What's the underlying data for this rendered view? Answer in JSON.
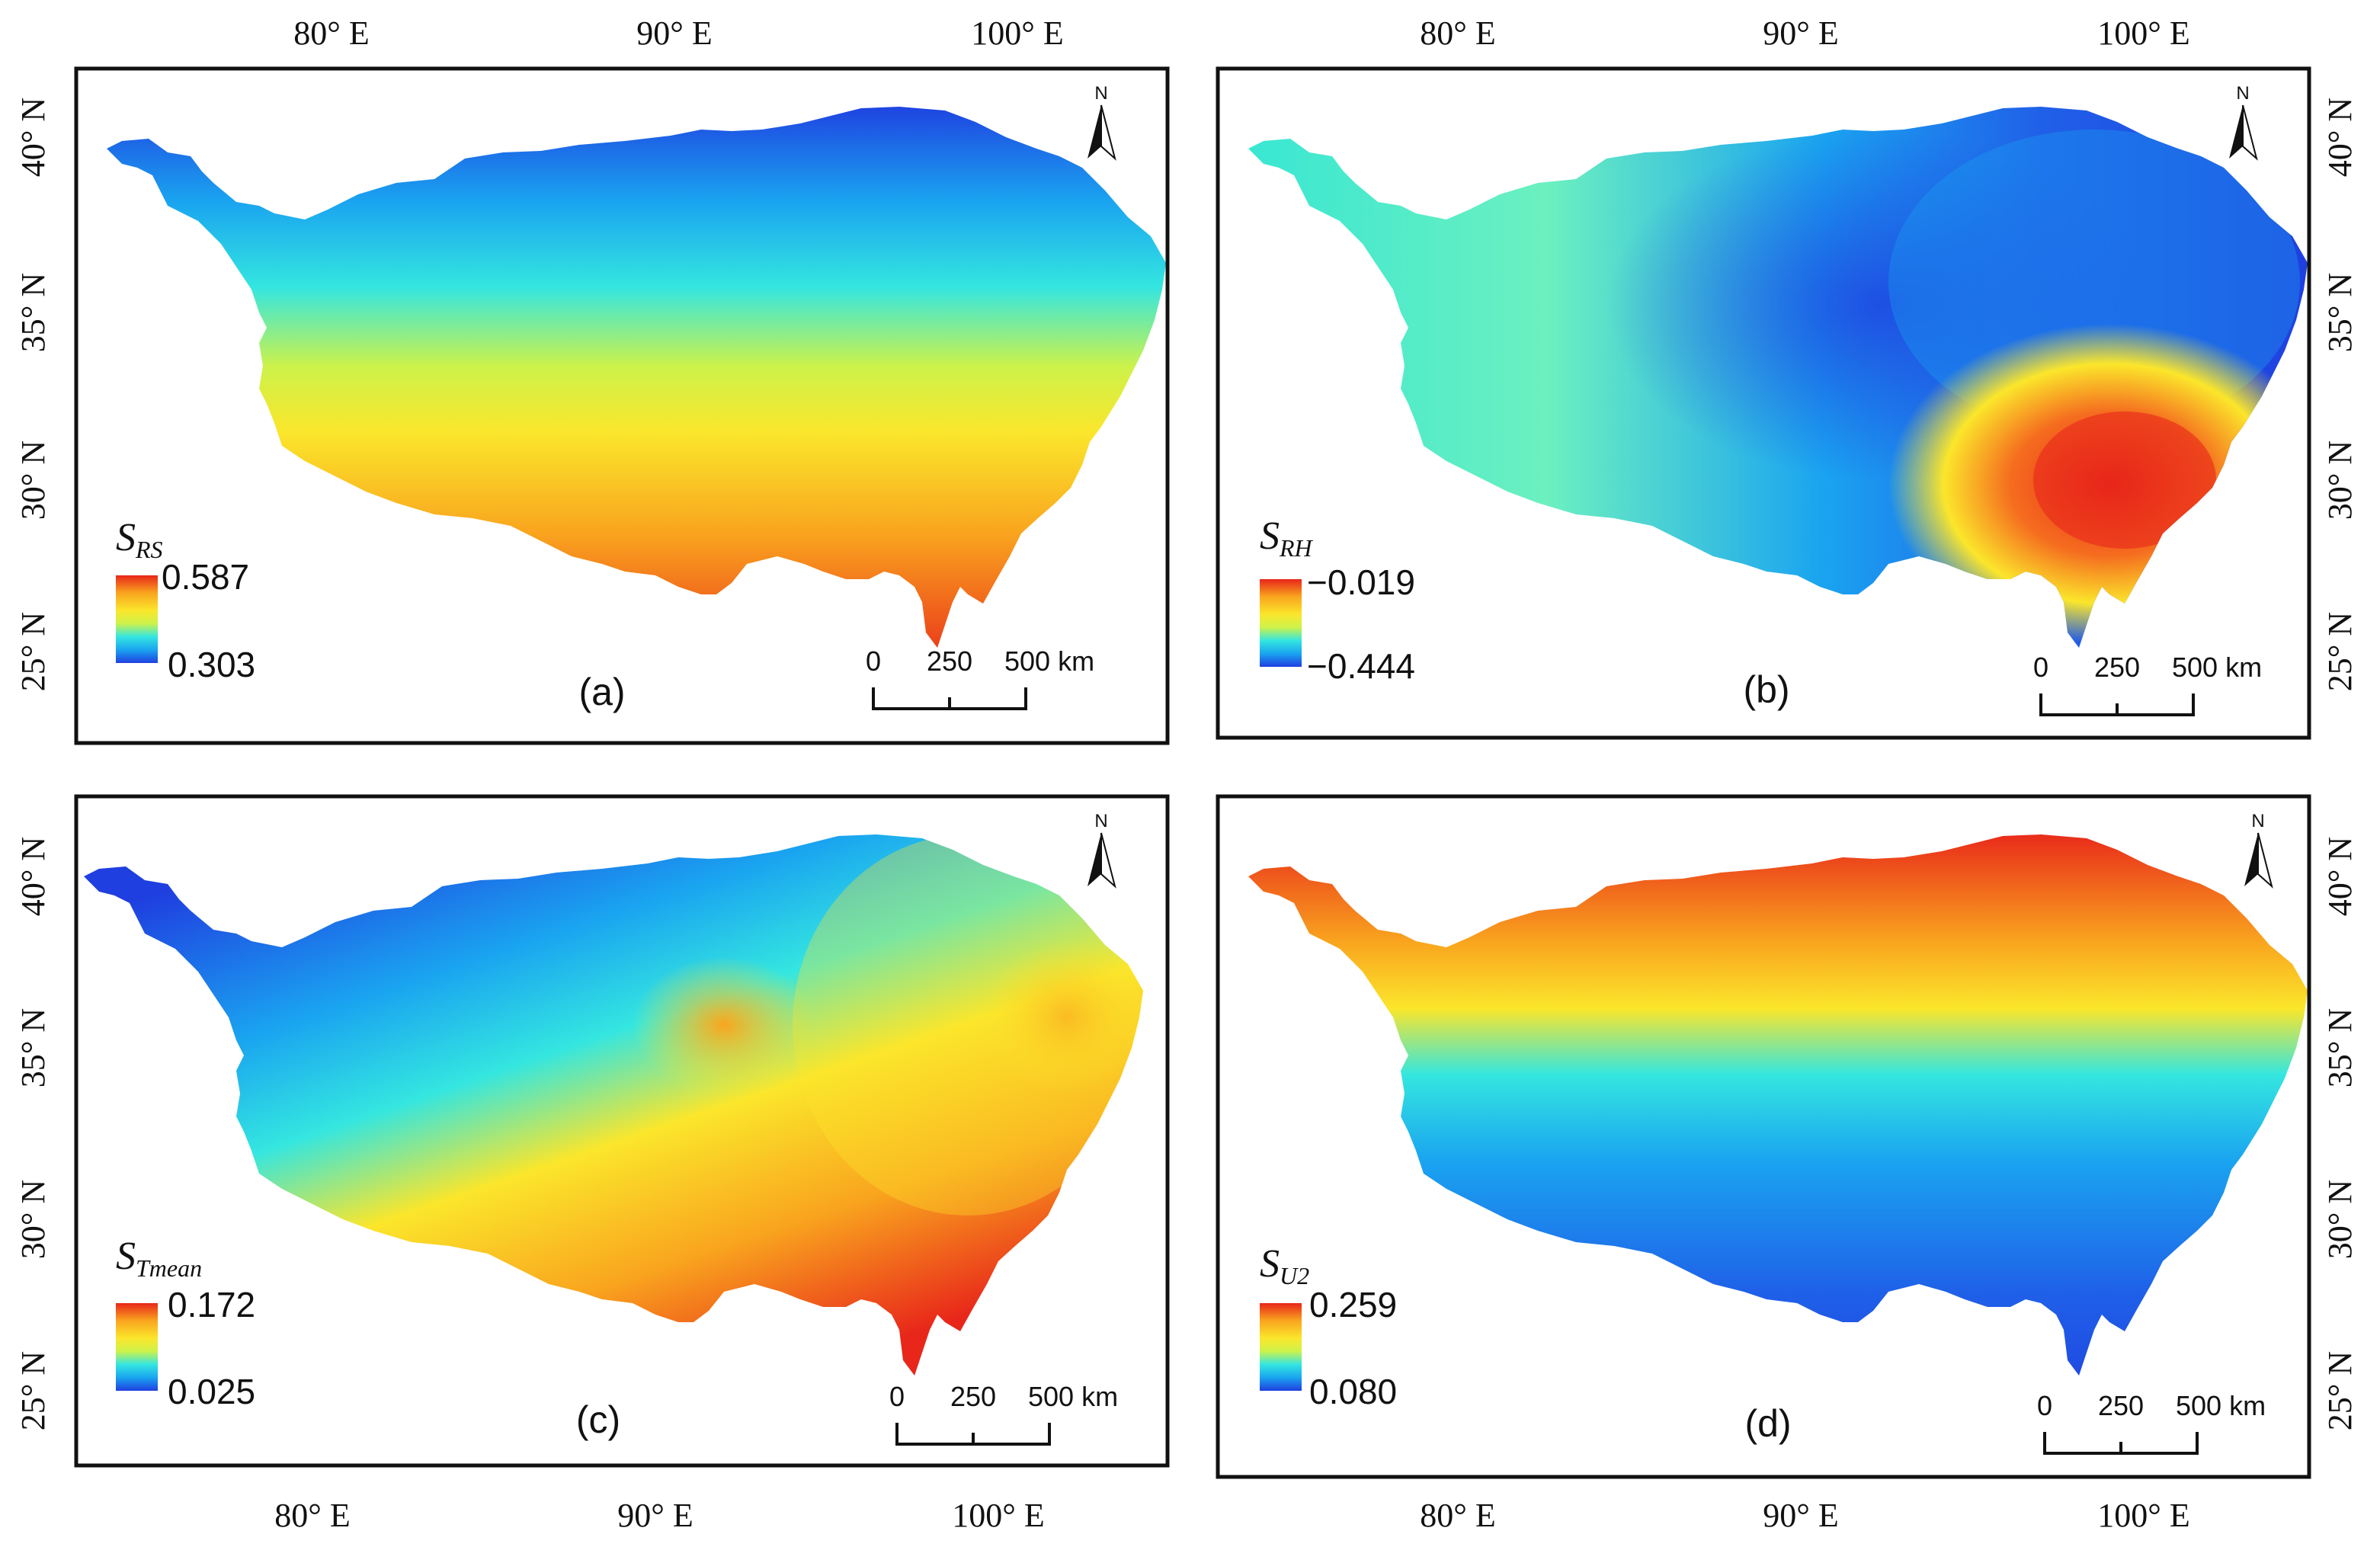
{
  "figure": {
    "axes": {
      "lon_labels": [
        "80° E",
        "90° E",
        "100° E"
      ],
      "lat_labels": [
        "40° N",
        "35° N",
        "30° N",
        "25° N"
      ]
    },
    "north": "N",
    "scale": {
      "labels": [
        "0",
        "250",
        "500 km"
      ]
    },
    "colormap": [
      "#1f3fe0",
      "#1aa4f0",
      "#34e6e0",
      "#cdf24a",
      "#fbe62b",
      "#f9a51e",
      "#e8261a"
    ],
    "panels": [
      {
        "id": "a",
        "letter": "(a)",
        "legend_title": "S",
        "legend_sub": "RS",
        "legend_max": "0.587",
        "legend_min": "0.303"
      },
      {
        "id": "b",
        "letter": "(b)",
        "legend_title": "S",
        "legend_sub": "RH",
        "legend_max": "−0.019",
        "legend_min": "−0.444"
      },
      {
        "id": "c",
        "letter": "(c)",
        "legend_title": "S",
        "legend_sub": "Tmean",
        "legend_max": "0.172",
        "legend_min": "0.025"
      },
      {
        "id": "d",
        "letter": "(d)",
        "legend_title": "S",
        "legend_sub": "U2",
        "legend_max": "0.259",
        "legend_min": "0.080"
      }
    ]
  }
}
